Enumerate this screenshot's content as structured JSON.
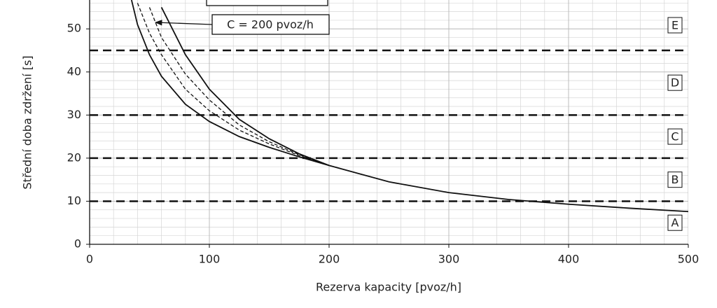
{
  "chart_data": {
    "type": "line",
    "xlabel": "Rezerva kapacity [pvoz/h]",
    "ylabel": "Střední doba zdržení [s]",
    "x": [
      35,
      40,
      50,
      60,
      80,
      100,
      125,
      150,
      175,
      200,
      250,
      300,
      350,
      400,
      450,
      500
    ],
    "series": [
      {
        "color": "#111111",
        "dashed": false,
        "values": [
          56.7,
          51,
          44,
          39,
          32.5,
          28.5,
          25,
          22.5,
          20.3,
          18.3,
          14.5,
          12,
          10.4,
          9.3,
          8.4,
          7.6
        ]
      },
      {
        "color": "#111111",
        "dashed": true,
        "values": [
          null,
          56,
          49,
          44,
          36,
          31,
          26.5,
          23.3,
          20.6,
          18.3,
          null,
          null,
          null,
          null,
          null,
          null
        ]
      },
      {
        "color": "#111111",
        "dashed": true,
        "values": [
          null,
          null,
          55,
          48,
          39.5,
          33.5,
          27.7,
          23.8,
          20.8,
          18.3,
          null,
          null,
          null,
          null,
          null,
          null
        ]
      },
      {
        "color": "#111111",
        "dashed": false,
        "values": [
          null,
          null,
          null,
          55,
          44,
          36,
          29,
          24.5,
          21,
          18.3,
          null,
          null,
          null,
          null,
          null,
          null
        ]
      }
    ],
    "xlim": [
      0,
      500
    ],
    "xticks": [
      0,
      100,
      200,
      300,
      400,
      500
    ],
    "ylim": [
      0,
      56.7
    ],
    "yticks": [
      0,
      10,
      20,
      30,
      40,
      50
    ],
    "grid": true,
    "thresholds": [
      10,
      20,
      30,
      45
    ],
    "level_labels": [
      "A",
      "B",
      "C",
      "D",
      "E"
    ],
    "annotation": {
      "text": "C = 200 pvoz/h",
      "x": 55,
      "y": 51.5
    }
  }
}
